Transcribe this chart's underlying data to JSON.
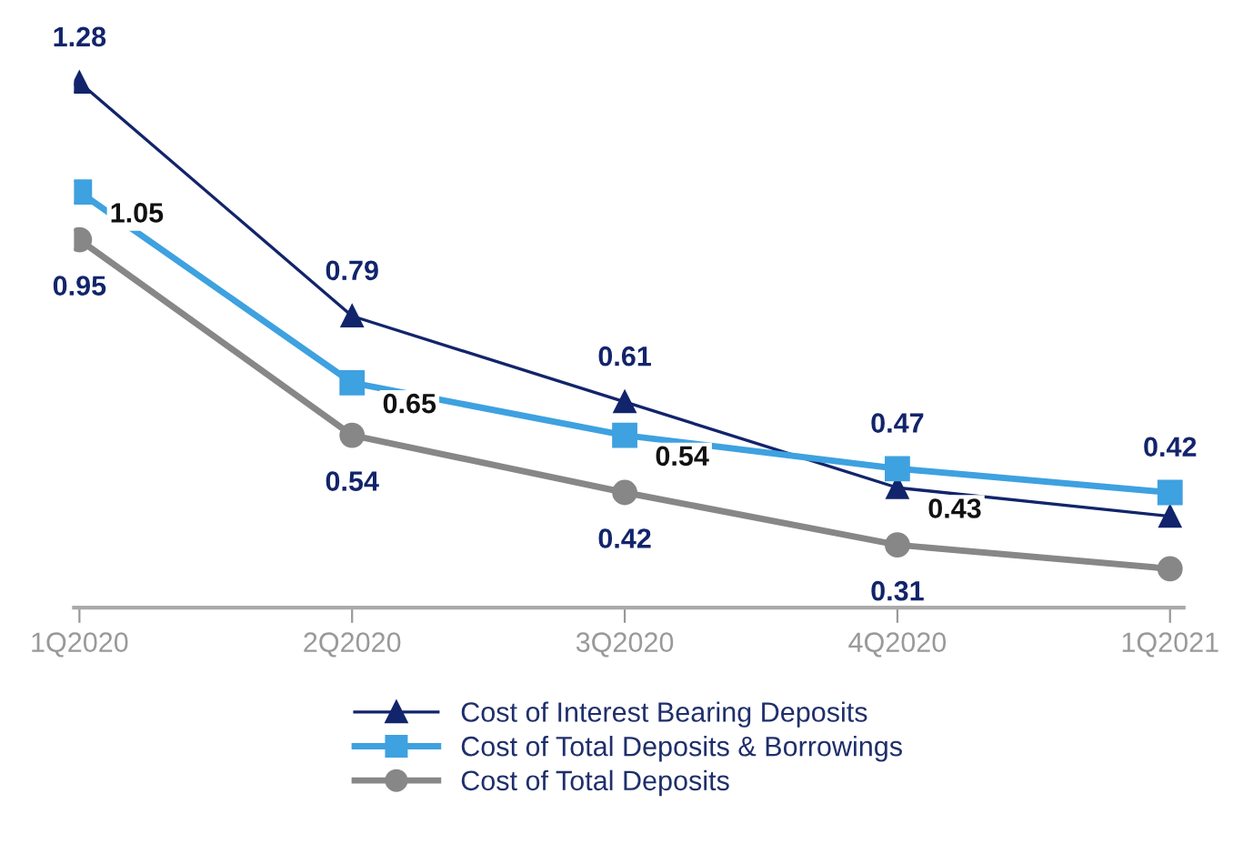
{
  "chart_data": {
    "type": "line",
    "categories": [
      "1Q2020",
      "2Q2020",
      "3Q2020",
      "4Q2020",
      "1Q2021"
    ],
    "series": [
      {
        "name": "Cost of Interest Bearing Deposits",
        "color": "#12246b",
        "marker": "triangle",
        "values": [
          1.28,
          0.79,
          0.61,
          0.43,
          0.37
        ],
        "value_labels": [
          "1.28",
          "0.79",
          "0.61",
          "0.43",
          null
        ]
      },
      {
        "name": "Cost of Total Deposits & Borrowings",
        "color": "#3ea1e0",
        "marker": "square",
        "values": [
          1.05,
          0.65,
          0.54,
          0.47,
          0.42
        ],
        "value_labels": [
          "1.05",
          "0.65",
          "0.54",
          "0.47",
          "0.42"
        ]
      },
      {
        "name": "Cost of Total Deposits",
        "color": "#878787",
        "marker": "circle",
        "values": [
          0.95,
          0.54,
          0.42,
          0.31,
          0.26
        ],
        "value_labels": [
          "0.95",
          "0.54",
          "0.42",
          "0.31",
          null
        ]
      }
    ],
    "legend": "bottom",
    "grid": false,
    "tick_labels": "x"
  }
}
